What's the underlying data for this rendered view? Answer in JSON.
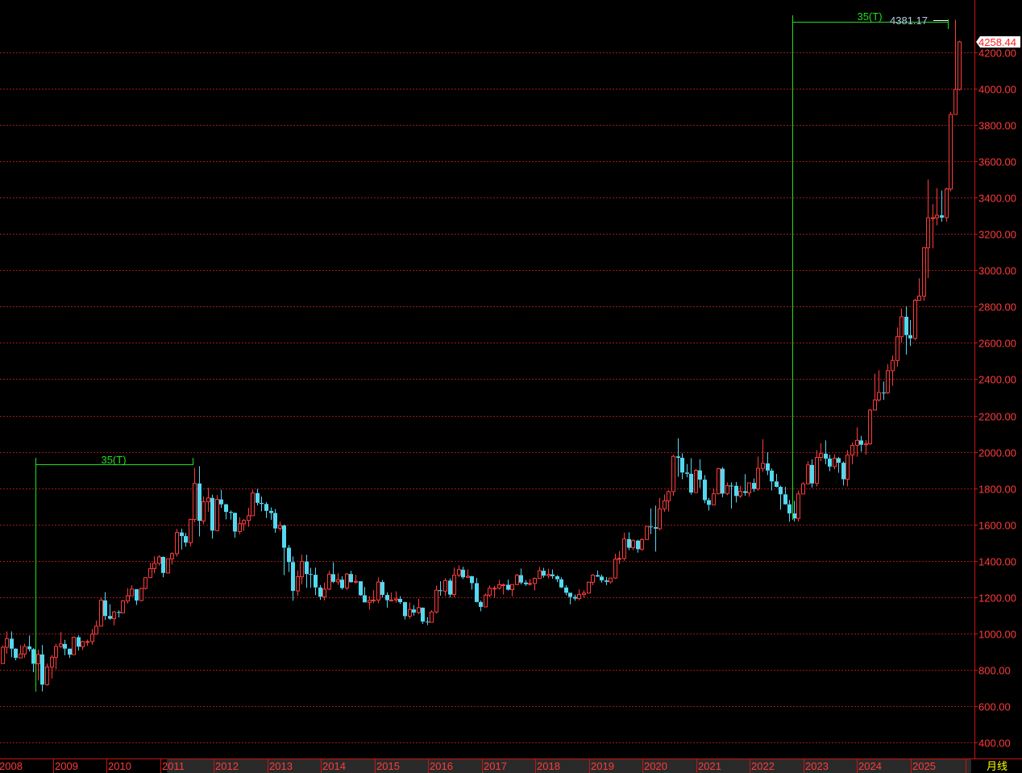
{
  "chart_data": {
    "type": "candlestick",
    "period_label": "月线",
    "x_tick_labels": [
      "2008",
      "2009",
      "2010",
      "2011",
      "2012",
      "2013",
      "2014",
      "2015",
      "2016",
      "2017",
      "2018",
      "2019",
      "2020",
      "2021",
      "2022",
      "2023",
      "2024",
      "2025"
    ],
    "y_tick_labels": [
      "400.00",
      "600.00",
      "800.00",
      "1000.00",
      "1200.00",
      "1400.00",
      "1600.00",
      "1800.00",
      "2000.00",
      "2200.00",
      "2400.00",
      "2600.00",
      "2800.00",
      "3000.00",
      "3200.00",
      "3400.00",
      "3600.00",
      "3800.00",
      "4000.00",
      "4200.00"
    ],
    "y_ticks": [
      400,
      600,
      800,
      1000,
      1200,
      1400,
      1600,
      1800,
      2000,
      2200,
      2400,
      2600,
      2800,
      3000,
      3200,
      3400,
      3600,
      3800,
      4000,
      4200
    ],
    "grid": true,
    "up_color": "#ff3b3b",
    "down_color": "#54d8f0",
    "start": "2008-01",
    "first_open": 834,
    "close": [
      924,
      971,
      916,
      865,
      887,
      928,
      913,
      833,
      884,
      718,
      815,
      869,
      928,
      942,
      916,
      883,
      979,
      927,
      955,
      955,
      996,
      1040,
      1182,
      1096,
      1081,
      1118,
      1113,
      1179,
      1207,
      1244,
      1181,
      1248,
      1307,
      1357,
      1386,
      1421,
      1333,
      1411,
      1439,
      1556,
      1536,
      1500,
      1628,
      1826,
      1620,
      1725,
      1746,
      1566,
      1738,
      1711,
      1669,
      1664,
      1561,
      1604,
      1622,
      1648,
      1773,
      1719,
      1713,
      1675,
      1663,
      1578,
      1595,
      1472,
      1393,
      1234,
      1312,
      1396,
      1327,
      1323,
      1253,
      1202,
      1244,
      1326,
      1284,
      1296,
      1250,
      1327,
      1282,
      1287,
      1210,
      1171,
      1182,
      1184,
      1283,
      1212,
      1183,
      1184,
      1190,
      1172,
      1095,
      1132,
      1115,
      1142,
      1065,
      1061,
      1118,
      1238,
      1233,
      1291,
      1214,
      1321,
      1351,
      1309,
      1315,
      1277,
      1173,
      1146,
      1211,
      1249,
      1249,
      1268,
      1268,
      1241,
      1269,
      1321,
      1280,
      1271,
      1275,
      1303,
      1345,
      1318,
      1325,
      1315,
      1298,
      1253,
      1224,
      1201,
      1192,
      1215,
      1222,
      1282,
      1321,
      1313,
      1292,
      1284,
      1305,
      1409,
      1413,
      1520,
      1472,
      1511,
      1464,
      1517,
      1589,
      1585,
      1577,
      1686,
      1730,
      1781,
      1975,
      1967,
      1886,
      1879,
      1776,
      1898,
      1847,
      1734,
      1708,
      1769,
      1907,
      1770,
      1814,
      1813,
      1757,
      1783,
      1774,
      1829,
      1796,
      1909,
      1937,
      1897,
      1837,
      1807,
      1766,
      1711,
      1661,
      1633,
      1768,
      1824,
      1928,
      1826,
      1969,
      1990,
      1963,
      1919,
      1965,
      1940,
      1849,
      1983,
      2036,
      2063,
      2039,
      2044,
      2230,
      2286,
      2327,
      2326,
      2447,
      2503,
      2634,
      2744,
      2643,
      2625,
      2835,
      2858,
      3124,
      3289,
      3289,
      3303,
      3290,
      3448,
      3858,
      3996,
      4258
    ],
    "high": [
      933,
      1011,
      1011,
      918,
      936,
      944,
      988,
      920,
      911,
      936,
      834,
      881,
      943,
      1007,
      965,
      917,
      981,
      990,
      960,
      966,
      1024,
      1070,
      1195,
      1227,
      1161,
      1124,
      1127,
      1184,
      1249,
      1265,
      1244,
      1251,
      1308,
      1388,
      1425,
      1431,
      1424,
      1411,
      1447,
      1576,
      1577,
      1553,
      1632,
      1911,
      1921,
      1755,
      1803,
      1764,
      1762,
      1791,
      1714,
      1677,
      1666,
      1640,
      1630,
      1692,
      1791,
      1796,
      1754,
      1723,
      1694,
      1685,
      1616,
      1599,
      1487,
      1424,
      1347,
      1434,
      1433,
      1361,
      1362,
      1267,
      1280,
      1345,
      1392,
      1331,
      1315,
      1332,
      1345,
      1323,
      1287,
      1255,
      1205,
      1239,
      1307,
      1294,
      1226,
      1225,
      1232,
      1205,
      1175,
      1170,
      1156,
      1191,
      1143,
      1089,
      1128,
      1263,
      1287,
      1304,
      1303,
      1362,
      1375,
      1367,
      1352,
      1317,
      1306,
      1181,
      1220,
      1264,
      1262,
      1295,
      1275,
      1296,
      1270,
      1326,
      1357,
      1294,
      1300,
      1307,
      1366,
      1361,
      1356,
      1352,
      1321,
      1309,
      1266,
      1215,
      1214,
      1243,
      1238,
      1285,
      1326,
      1346,
      1324,
      1310,
      1306,
      1439,
      1453,
      1555,
      1557,
      1518,
      1516,
      1524,
      1592,
      1689,
      1704,
      1747,
      1765,
      1789,
      1984,
      2075,
      1992,
      1933,
      1965,
      1906,
      1959,
      1872,
      1746,
      1798,
      1912,
      1916,
      1832,
      1832,
      1834,
      1813,
      1877,
      1831,
      1853,
      1974,
      2070,
      1998,
      1909,
      1879,
      1814,
      1807,
      1735,
      1730,
      1786,
      1833,
      1949,
      1959,
      2009,
      2048,
      2063,
      1984,
      1987,
      1972,
      1947,
      2009,
      2052,
      2135,
      2088,
      2065,
      2236,
      2431,
      2450,
      2387,
      2483,
      2531,
      2685,
      2790,
      2801,
      2726,
      2842,
      2956,
      3128,
      3500,
      3365,
      3452,
      3439,
      3454,
      3873,
      4381,
      4264
    ],
    "low": [
      846,
      888,
      869,
      852,
      866,
      866,
      901,
      786,
      740,
      681,
      712,
      752,
      802,
      920,
      880,
      865,
      883,
      906,
      908,
      931,
      937,
      1002,
      1044,
      1075,
      1075,
      1044,
      1088,
      1114,
      1165,
      1207,
      1157,
      1176,
      1242,
      1315,
      1331,
      1374,
      1309,
      1330,
      1380,
      1423,
      1462,
      1478,
      1478,
      1613,
      1534,
      1603,
      1670,
      1522,
      1562,
      1692,
      1628,
      1627,
      1527,
      1547,
      1565,
      1587,
      1648,
      1704,
      1673,
      1636,
      1626,
      1555,
      1565,
      1321,
      1339,
      1180,
      1208,
      1271,
      1251,
      1251,
      1211,
      1185,
      1182,
      1238,
      1277,
      1268,
      1241,
      1240,
      1280,
      1275,
      1207,
      1183,
      1131,
      1167,
      1167,
      1197,
      1142,
      1175,
      1169,
      1162,
      1077,
      1080,
      1098,
      1106,
      1052,
      1046,
      1062,
      1109,
      1208,
      1207,
      1199,
      1200,
      1310,
      1300,
      1306,
      1241,
      1171,
      1122,
      1146,
      1200,
      1195,
      1242,
      1214,
      1236,
      1204,
      1267,
      1270,
      1262,
      1263,
      1236,
      1303,
      1307,
      1303,
      1301,
      1282,
      1250,
      1211,
      1160,
      1180,
      1182,
      1196,
      1221,
      1266,
      1311,
      1280,
      1266,
      1274,
      1300,
      1382,
      1400,
      1459,
      1459,
      1445,
      1455,
      1517,
      1547,
      1451,
      1568,
      1670,
      1671,
      1757,
      1863,
      1849,
      1860,
      1764,
      1775,
      1802,
      1717,
      1677,
      1721,
      1767,
      1750,
      1761,
      1688,
      1721,
      1746,
      1758,
      1753,
      1780,
      1786,
      1890,
      1872,
      1787,
      1805,
      1681,
      1709,
      1615,
      1617,
      1616,
      1767,
      1824,
      1804,
      1809,
      1949,
      1932,
      1893,
      1903,
      1885,
      1815,
      1810,
      1931,
      1973,
      2001,
      1984,
      2039,
      2228,
      2277,
      2286,
      2319,
      2364,
      2471,
      2603,
      2536,
      2583,
      2614,
      2833,
      2832,
      2957,
      3121,
      3248,
      3268,
      3268,
      3435,
      3947,
      3990
    ],
    "annotations": {
      "interval_1": {
        "label": "35(T)",
        "from": "2008-10",
        "to": "2011-09"
      },
      "interval_2": {
        "label": "35(T)",
        "from": "2022-10",
        "to": "2025-10",
        "high_label": "4381.17"
      }
    },
    "last_price": "4258.44"
  }
}
